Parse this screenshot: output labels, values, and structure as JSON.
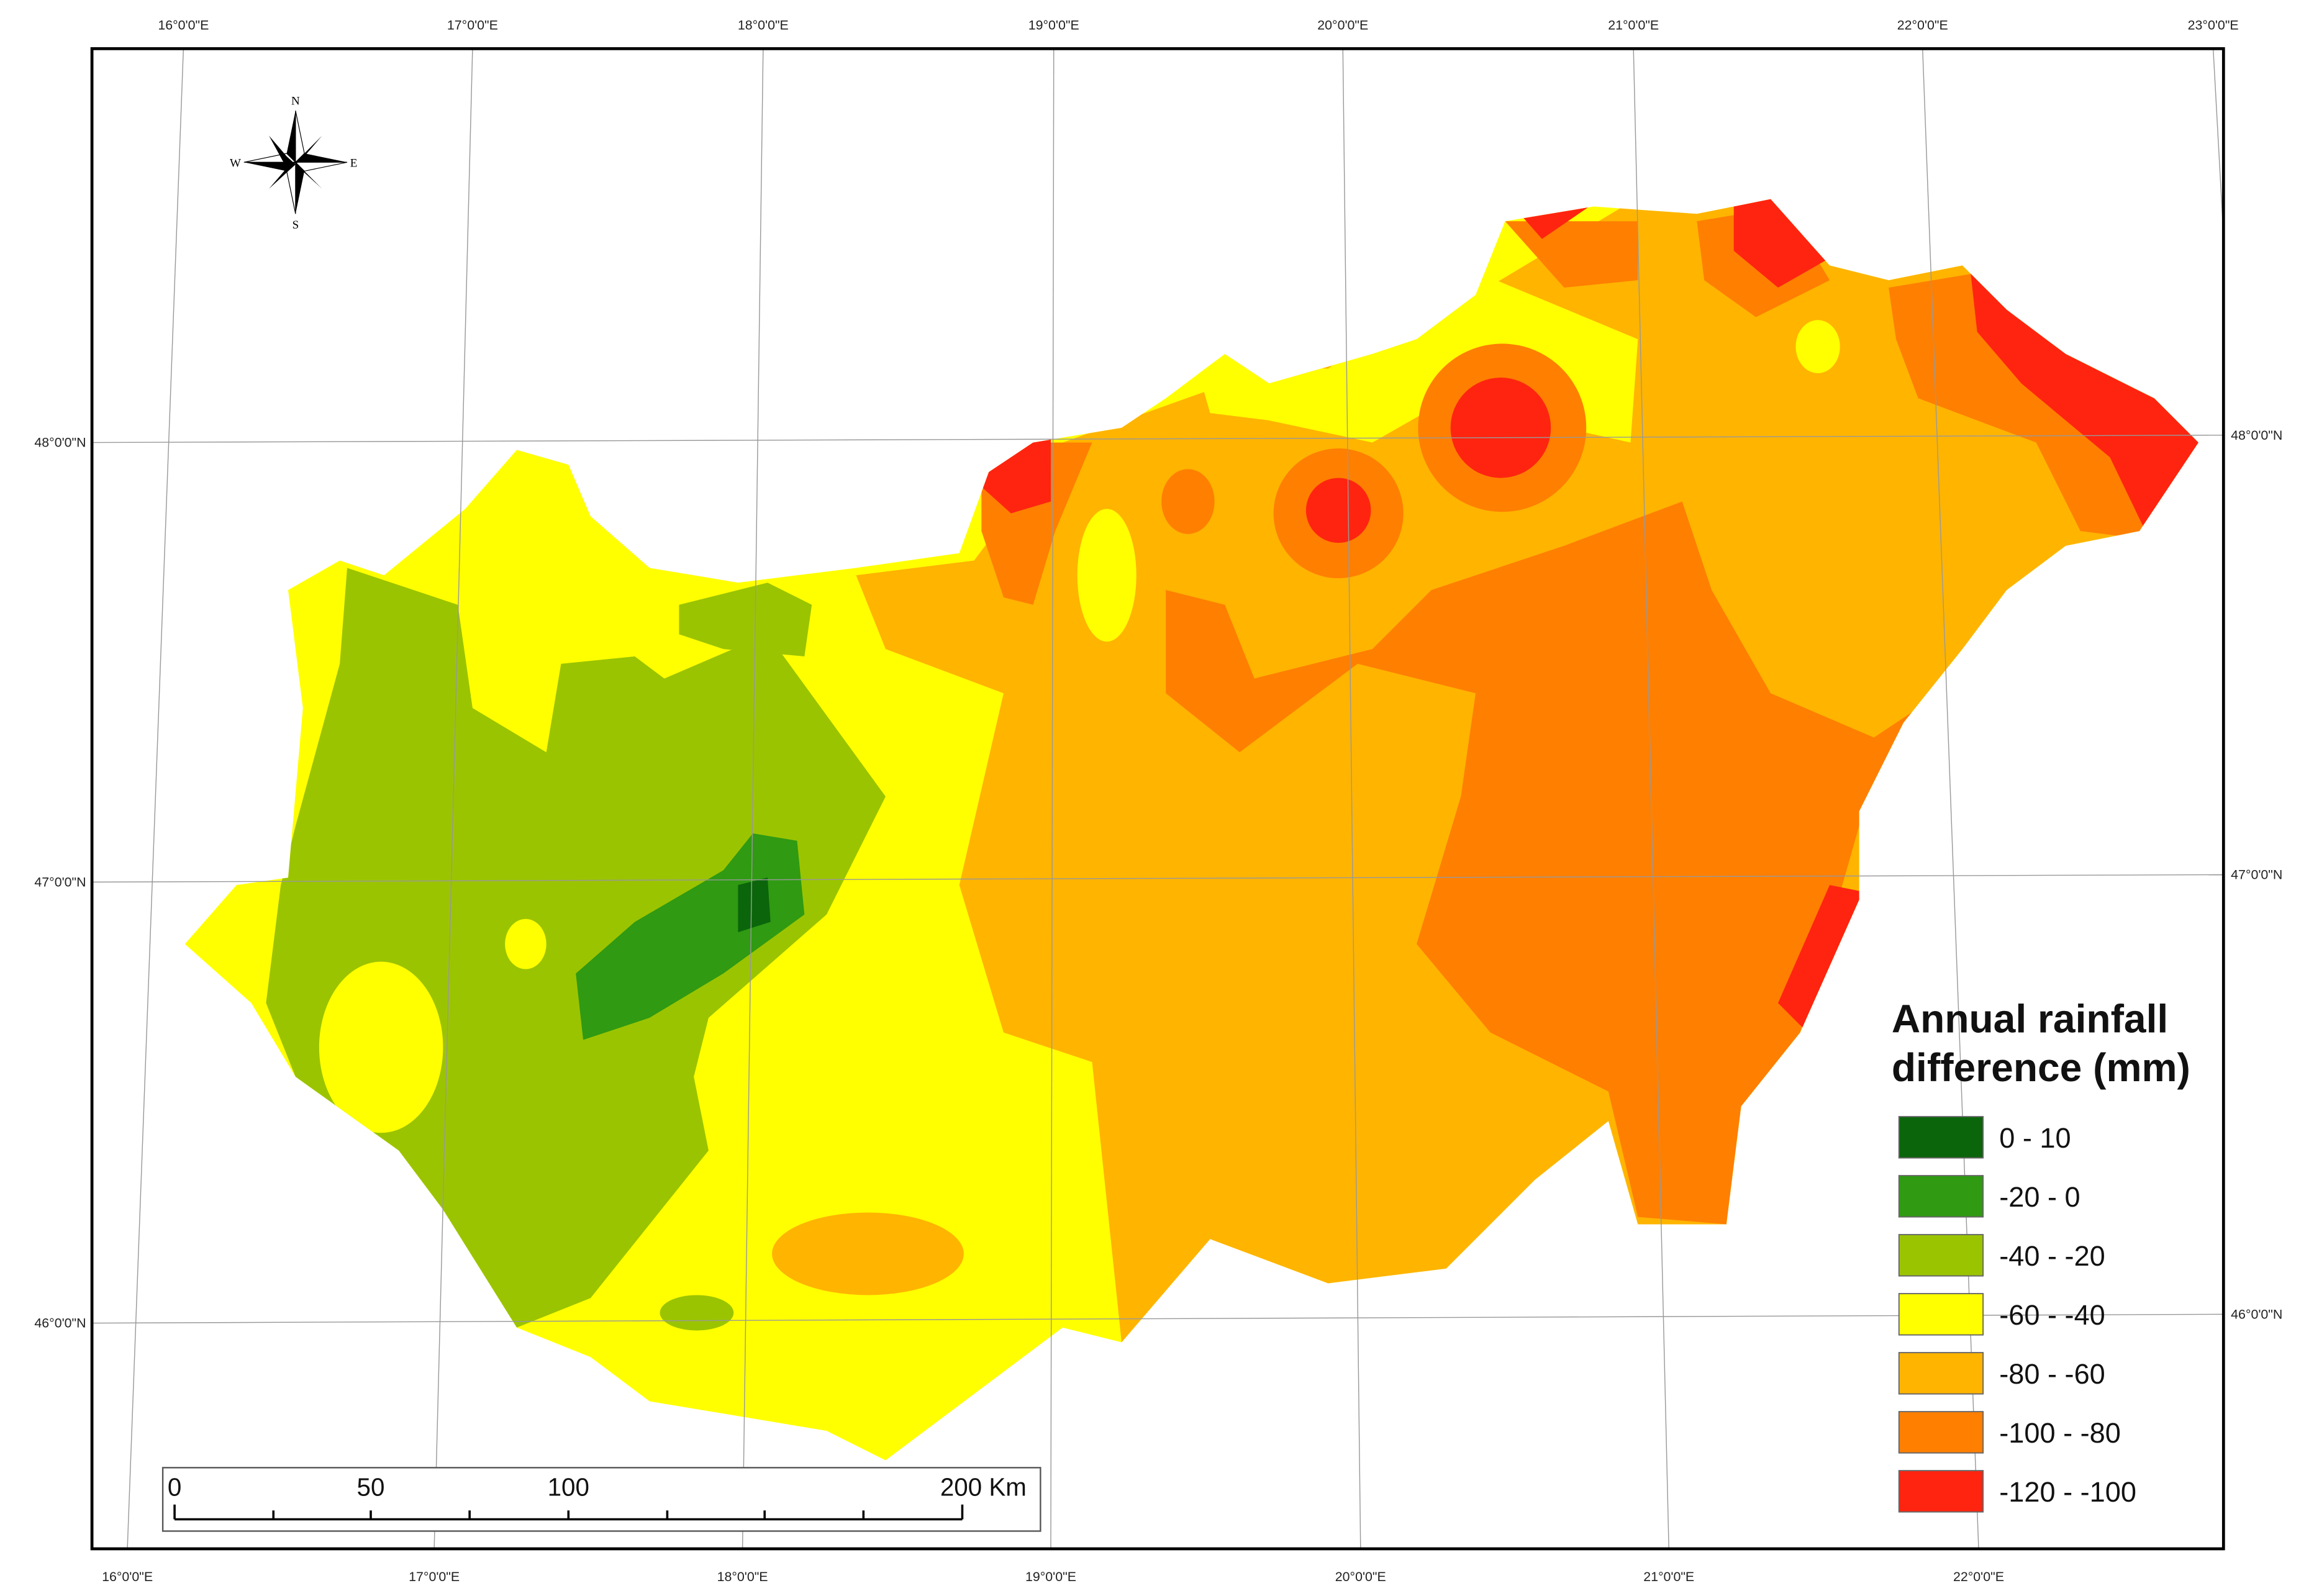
{
  "map": {
    "top_labels": [
      "16°0'0\"E",
      "17°0'0\"E",
      "18°0'0\"E",
      "19°0'0\"E",
      "20°0'0\"E",
      "21°0'0\"E",
      "22°0'0\"E",
      "23°0'0\"E"
    ],
    "bottom_labels": [
      "16°0'0\"E",
      "17°0'0\"E",
      "18°0'0\"E",
      "19°0'0\"E",
      "20°0'0\"E",
      "21°0'0\"E",
      "22°0'0\"E"
    ],
    "left_labels": [
      "48°0'0\"N",
      "47°0'0\"N",
      "46°0'0\"N"
    ],
    "right_labels": [
      "48°0'0\"N",
      "47°0'0\"N",
      "46°0'0\"N"
    ],
    "compass": {
      "north": "N",
      "east": "E",
      "south": "S",
      "west": "W"
    },
    "legend": {
      "title_lines": [
        "Annual rainfall",
        "difference (mm)"
      ],
      "items": [
        {
          "label": "0 - 10",
          "color": "#0b650b"
        },
        {
          "label": "-20 - 0",
          "color": "#2f9a12"
        },
        {
          "label": "-40 - -20",
          "color": "#9bc400"
        },
        {
          "label": "-60 - -40",
          "color": "#ffff00"
        },
        {
          "label": "-80 - -60",
          "color": "#ffb400"
        },
        {
          "label": "-100 - -80",
          "color": "#ff7f00"
        },
        {
          "label": "-120 - -100",
          "color": "#ff2410"
        }
      ]
    },
    "scale_bar": {
      "labels": [
        "0",
        "50",
        "100",
        "200 Km"
      ]
    }
  }
}
